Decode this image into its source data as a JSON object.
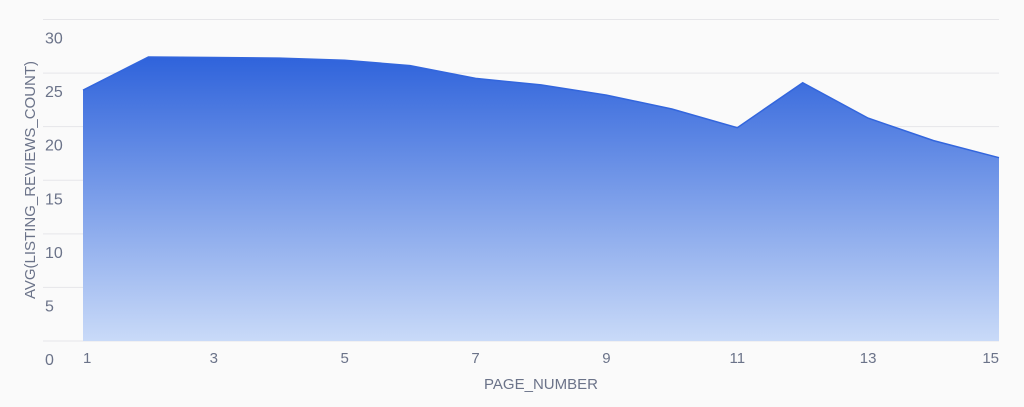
{
  "chart_data": {
    "type": "area",
    "title": "",
    "xlabel": "PAGE_NUMBER",
    "ylabel": "AVG(LISTING_REVIEWS_COUNT)",
    "x": [
      1,
      2,
      3,
      4,
      5,
      6,
      7,
      8,
      9,
      10,
      11,
      12,
      13,
      14,
      15
    ],
    "x_tick_labels": [
      "1",
      "3",
      "5",
      "7",
      "9",
      "11",
      "13",
      "15"
    ],
    "y_tick_labels": [
      "0",
      "5",
      "10",
      "15",
      "20",
      "25",
      "30"
    ],
    "series": [
      {
        "name": "AVG(LISTING_REVIEWS_COUNT)",
        "values": [
          23.4,
          26.5,
          26.45,
          26.4,
          26.2,
          25.7,
          24.5,
          23.9,
          22.95,
          21.65,
          19.9,
          24.1,
          20.8,
          18.7,
          17.1
        ]
      }
    ],
    "xlim": [
      1,
      15
    ],
    "ylim": [
      0,
      30
    ],
    "grid": true,
    "legend": "none",
    "colors": {
      "fill_top": "#2f63db",
      "fill_bottom": "#c9daf8",
      "line": "#3366dd",
      "grid": "#e6e6e9"
    }
  }
}
